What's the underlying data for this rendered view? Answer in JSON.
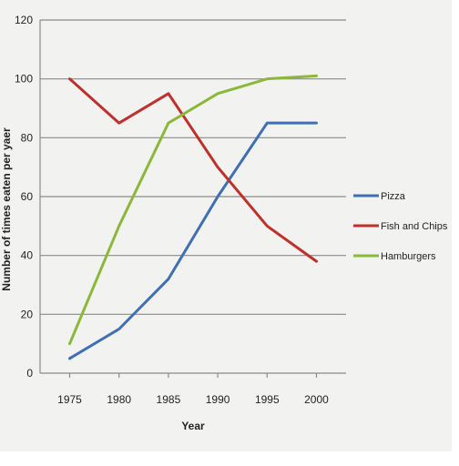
{
  "chart_data": {
    "type": "line",
    "title": "",
    "xlabel": "Year",
    "ylabel": "Number of times eaten per yaer",
    "x": [
      1975,
      1980,
      1985,
      1990,
      1995,
      2000
    ],
    "xlim": [
      1972,
      2003
    ],
    "ylim": [
      0,
      120
    ],
    "yticks": [
      0,
      20,
      40,
      60,
      80,
      100,
      120
    ],
    "grid": true,
    "legend_position": "right",
    "series": [
      {
        "name": "Pizza",
        "color": "#3f6fb5",
        "values": [
          5,
          15,
          32,
          60,
          85,
          85
        ]
      },
      {
        "name": "Fish and Chips",
        "color": "#c0302b",
        "values": [
          100,
          85,
          95,
          70,
          50,
          38
        ]
      },
      {
        "name": "Hamburgers",
        "color": "#8cb83a",
        "values": [
          10,
          50,
          85,
          95,
          100,
          101
        ]
      }
    ]
  }
}
